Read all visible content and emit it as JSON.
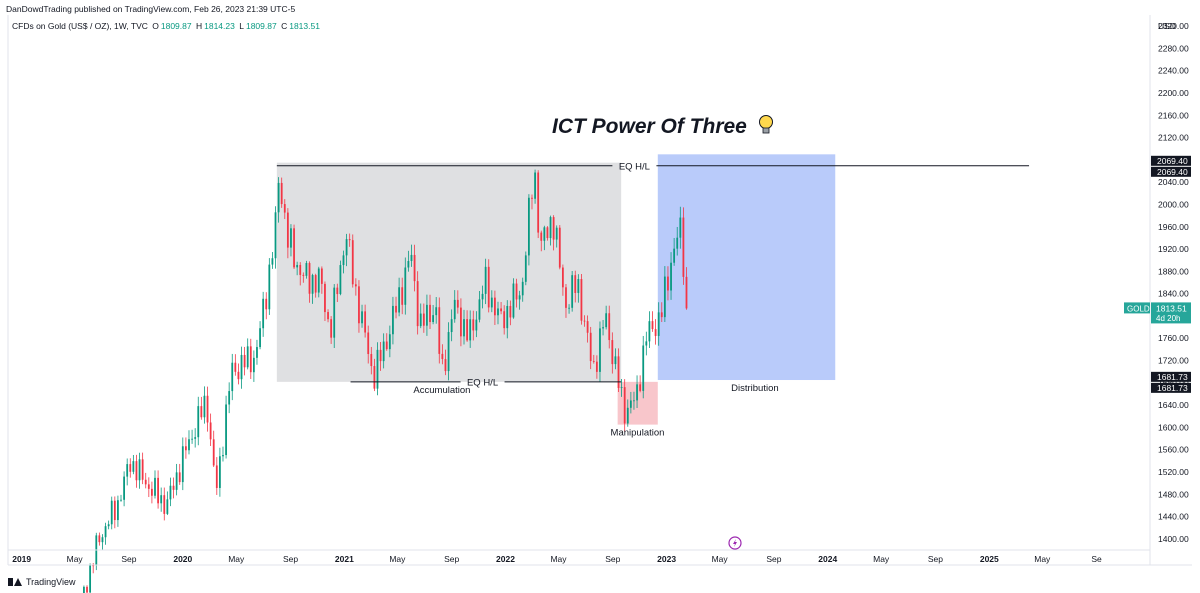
{
  "header": {
    "published": "DanDowdTrading published on TradingView.com, Feb 26, 2023 21:39 UTC-5"
  },
  "legend": {
    "symbol": "CFDs on Gold (US$ / OZ), 1W, TVC",
    "open_label": "O",
    "open": "1809.87",
    "high_label": "H",
    "high": "1814.23",
    "low_label": "L",
    "low": "1809.87",
    "close_label": "C",
    "close": "1813.51"
  },
  "footer": {
    "brand": "TradingView"
  },
  "colors": {
    "up": "#089981",
    "down": "#f23645",
    "accumulation_box": "#dfe0e2",
    "manipulation_box": "#f8c6cb",
    "distribution_box": "#b9cbfa",
    "price_label": "#26a69a"
  },
  "chart_data": {
    "type": "candlestick",
    "title": "ICT Power Of Three",
    "title_icon": "lightbulb-icon",
    "currency_label": "USD",
    "y_range": [
      1380,
      2340
    ],
    "y_ticks": [
      1400,
      1440,
      1480,
      1520,
      1560,
      1600,
      1640,
      1680,
      1720,
      1760,
      1800,
      1840,
      1880,
      1920,
      1960,
      2000,
      2040,
      2080,
      2120,
      2160,
      2200,
      2240,
      2280,
      2320
    ],
    "x_range": [
      "2018-12-01",
      "2025-12-31"
    ],
    "x_ticks": [
      {
        "date": "2019-01-01",
        "label": "2019",
        "bold": true
      },
      {
        "date": "2019-05-01",
        "label": "May"
      },
      {
        "date": "2019-09-01",
        "label": "Sep"
      },
      {
        "date": "2020-01-01",
        "label": "2020",
        "bold": true
      },
      {
        "date": "2020-05-01",
        "label": "May"
      },
      {
        "date": "2020-09-01",
        "label": "Sep"
      },
      {
        "date": "2021-01-01",
        "label": "2021",
        "bold": true
      },
      {
        "date": "2021-05-01",
        "label": "May"
      },
      {
        "date": "2021-09-01",
        "label": "Sep"
      },
      {
        "date": "2022-01-01",
        "label": "2022",
        "bold": true
      },
      {
        "date": "2022-05-01",
        "label": "May"
      },
      {
        "date": "2022-09-01",
        "label": "Sep"
      },
      {
        "date": "2023-01-01",
        "label": "2023",
        "bold": true
      },
      {
        "date": "2023-05-01",
        "label": "May"
      },
      {
        "date": "2023-09-01",
        "label": "Sep"
      },
      {
        "date": "2024-01-01",
        "label": "2024",
        "bold": true
      },
      {
        "date": "2024-05-01",
        "label": "May"
      },
      {
        "date": "2024-09-01",
        "label": "Sep"
      },
      {
        "date": "2025-01-01",
        "label": "2025",
        "bold": true
      },
      {
        "date": "2025-05-01",
        "label": "May"
      },
      {
        "date": "2025-09-01",
        "label": "Se"
      }
    ],
    "anchors": [
      [
        "2019-05-15",
        1285
      ],
      [
        "2019-06-25",
        1400
      ],
      [
        "2019-08-05",
        1460
      ],
      [
        "2019-09-05",
        1540
      ],
      [
        "2019-10-10",
        1500
      ],
      [
        "2019-11-25",
        1460
      ],
      [
        "2020-01-08",
        1560
      ],
      [
        "2020-02-24",
        1650
      ],
      [
        "2020-03-16",
        1480
      ],
      [
        "2020-04-20",
        1700
      ],
      [
        "2020-06-15",
        1730
      ],
      [
        "2020-07-27",
        1940
      ],
      [
        "2020-08-07",
        2060
      ],
      [
        "2020-08-24",
        1940
      ],
      [
        "2020-09-28",
        1870
      ],
      [
        "2020-11-09",
        1860
      ],
      [
        "2020-11-30",
        1770
      ],
      [
        "2021-01-04",
        1950
      ],
      [
        "2021-01-25",
        1850
      ],
      [
        "2021-03-08",
        1690
      ],
      [
        "2021-04-12",
        1770
      ],
      [
        "2021-06-01",
        1910
      ],
      [
        "2021-06-21",
        1780
      ],
      [
        "2021-07-26",
        1820
      ],
      [
        "2021-08-09",
        1690
      ],
      [
        "2021-09-06",
        1820
      ],
      [
        "2021-10-11",
        1760
      ],
      [
        "2021-11-15",
        1860
      ],
      [
        "2021-12-20",
        1790
      ],
      [
        "2022-02-07",
        1850
      ],
      [
        "2022-03-07",
        2070
      ],
      [
        "2022-03-21",
        1920
      ],
      [
        "2022-04-18",
        1980
      ],
      [
        "2022-05-16",
        1820
      ],
      [
        "2022-06-13",
        1860
      ],
      [
        "2022-07-18",
        1700
      ],
      [
        "2022-08-15",
        1800
      ],
      [
        "2022-09-26",
        1630
      ],
      [
        "2022-10-24",
        1650
      ],
      [
        "2022-11-14",
        1760
      ],
      [
        "2022-12-19",
        1800
      ],
      [
        "2023-01-16",
        1920
      ],
      [
        "2023-02-01",
        1950
      ],
      [
        "2023-02-20",
        1813.51
      ]
    ],
    "levels": [
      {
        "value": 2069.4,
        "label": "EQ H/L",
        "start": "2020-08-01",
        "end": "2025-04-01",
        "label_at": "2022-10-20"
      },
      {
        "value": 1681.73,
        "label": "EQ H/L",
        "start": "2021-01-15",
        "end": "2022-09-20",
        "label_at": "2021-11-10"
      }
    ],
    "boxes": [
      {
        "name": "accumulation",
        "label": "Accumulation",
        "start": "2020-08-01",
        "end": "2022-09-20",
        "top": 2075,
        "bottom": 1681.73,
        "label_at": "2021-08-10"
      },
      {
        "name": "manipulation",
        "label": "Manipulation",
        "start": "2022-09-12",
        "end": "2022-12-12",
        "top": 1681.73,
        "bottom": 1605,
        "label_at": "2022-10-27"
      },
      {
        "name": "distribution",
        "label": "Distribution",
        "start": "2022-12-12",
        "end": "2024-01-18",
        "top": 2090,
        "bottom": 1685,
        "label_at": "2023-07-20"
      }
    ],
    "price_labels": [
      {
        "value": 2069.4,
        "text": "2069.40",
        "style": "dark",
        "offset": -10
      },
      {
        "value": 2069.4,
        "text": "2069.40",
        "style": "dark",
        "offset": 1
      },
      {
        "value": 1681.73,
        "text": "1681.73",
        "style": "dark",
        "offset": -10
      },
      {
        "value": 1681.73,
        "text": "1681.73",
        "style": "dark",
        "offset": 1
      }
    ],
    "current_price": {
      "value": 1813.51,
      "text": "1813.51",
      "symbol": "GOLD",
      "countdown": "4d 20h"
    }
  }
}
